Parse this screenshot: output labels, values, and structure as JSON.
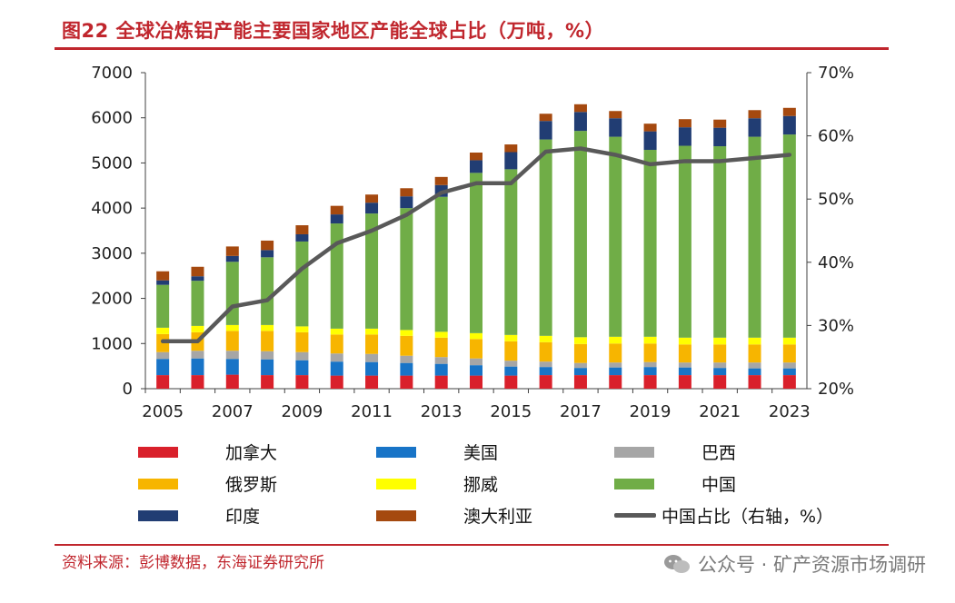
{
  "title": "图22  全球冶炼铝产能主要国家地区产能全球占比（万吨，%）",
  "source": "资料来源：彭博数据，东海证券研究所",
  "watermark": "公众号 · 矿产资源市场调研",
  "colors": {
    "accent": "#c0262d",
    "canada": "#d9202b",
    "usa": "#1874c7",
    "brazil": "#a6a6a6",
    "russia": "#f7b500",
    "norway": "#ffff00",
    "china": "#70ad47",
    "india": "#213d73",
    "australia": "#a5490f",
    "share": "#595959"
  },
  "legend": [
    {
      "key": "canada",
      "label": "加拿大"
    },
    {
      "key": "usa",
      "label": "美国"
    },
    {
      "key": "brazil",
      "label": "巴西"
    },
    {
      "key": "russia",
      "label": "俄罗斯"
    },
    {
      "key": "norway",
      "label": "挪威"
    },
    {
      "key": "china",
      "label": "中国"
    },
    {
      "key": "india",
      "label": "印度"
    },
    {
      "key": "australia",
      "label": "澳大利亚"
    },
    {
      "key": "share",
      "label": "中国占比（右轴，%）"
    }
  ],
  "chart_data": {
    "type": "bar",
    "stacked": true,
    "title": "全球冶炼铝产能主要国家地区产能全球占比（万吨，%）",
    "categories": [
      "2005",
      "2006",
      "2007",
      "2008",
      "2009",
      "2010",
      "2011",
      "2012",
      "2013",
      "2014",
      "2015",
      "2016",
      "2017",
      "2018",
      "2019",
      "2020",
      "2021",
      "2022",
      "2023"
    ],
    "x_tick_labels": [
      "2005",
      "2007",
      "2009",
      "2011",
      "2013",
      "2015",
      "2017",
      "2019",
      "2021",
      "2023"
    ],
    "ylim": [
      0,
      7000
    ],
    "y_ticks": [
      "0",
      "1000",
      "2000",
      "3000",
      "4000",
      "5000",
      "6000",
      "7000"
    ],
    "y2lim": [
      20,
      70
    ],
    "y2_ticks": [
      "20%",
      "30%",
      "40%",
      "50%",
      "60%",
      "70%"
    ],
    "series": [
      {
        "key": "canada",
        "name": "加拿大",
        "values": [
          300,
          300,
          310,
          300,
          300,
          290,
          290,
          290,
          290,
          290,
          290,
          300,
          300,
          300,
          300,
          300,
          300,
          300,
          300
        ]
      },
      {
        "key": "usa",
        "name": "美国",
        "values": [
          360,
          370,
          350,
          350,
          330,
          310,
          300,
          280,
          260,
          230,
          200,
          180,
          160,
          170,
          180,
          170,
          160,
          150,
          150
        ]
      },
      {
        "key": "brazil",
        "name": "巴西",
        "values": [
          150,
          170,
          180,
          180,
          180,
          180,
          180,
          160,
          150,
          150,
          130,
          120,
          110,
          110,
          110,
          110,
          120,
          130,
          130
        ]
      },
      {
        "key": "russia",
        "name": "俄罗斯",
        "values": [
          400,
          410,
          440,
          450,
          440,
          420,
          430,
          440,
          430,
          430,
          430,
          430,
          420,
          420,
          410,
          400,
          400,
          400,
          400
        ]
      },
      {
        "key": "norway",
        "name": "挪威",
        "values": [
          140,
          140,
          130,
          130,
          130,
          130,
          130,
          130,
          130,
          130,
          140,
          140,
          150,
          150,
          150,
          150,
          150,
          150,
          150
        ]
      },
      {
        "key": "china",
        "name": "中国",
        "values": [
          950,
          1000,
          1400,
          1500,
          1880,
          2330,
          2550,
          2700,
          2990,
          3550,
          3670,
          4350,
          4570,
          4430,
          4140,
          4250,
          4240,
          4450,
          4500
        ]
      },
      {
        "key": "india",
        "name": "印度",
        "values": [
          100,
          100,
          130,
          160,
          160,
          200,
          240,
          260,
          260,
          280,
          380,
          410,
          420,
          410,
          410,
          410,
          410,
          410,
          410
        ]
      },
      {
        "key": "australia",
        "name": "澳大利亚",
        "values": [
          200,
          210,
          210,
          210,
          200,
          190,
          180,
          180,
          180,
          170,
          170,
          160,
          170,
          160,
          170,
          180,
          180,
          180,
          180
        ]
      }
    ],
    "line_series": {
      "key": "share",
      "name": "中国占比（右轴，%）",
      "axis": "right",
      "values": [
        27.5,
        27.5,
        33,
        34,
        39,
        43,
        45,
        47.5,
        51,
        52.5,
        52.5,
        57.5,
        58,
        57,
        55.5,
        56,
        56,
        56.5,
        57
      ]
    },
    "legend_position": "bottom",
    "grid": false
  }
}
